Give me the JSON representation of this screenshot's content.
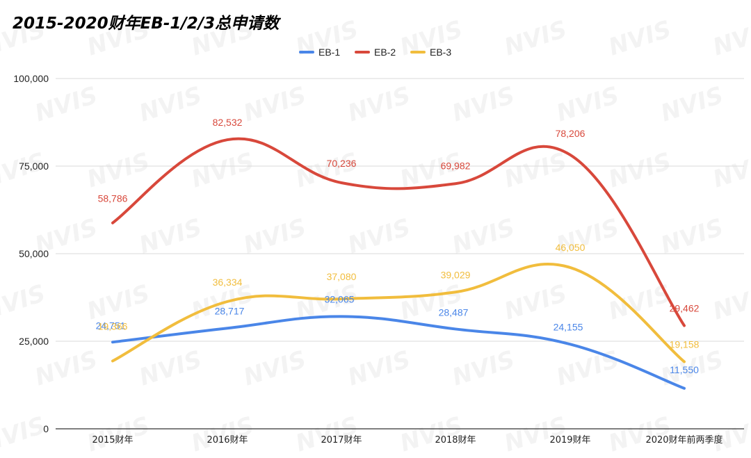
{
  "chart_data": {
    "type": "line",
    "title": "2015-2020财年EB-1/2/3总申请数",
    "categories": [
      "2015财年",
      "2016财年",
      "2017财年",
      "2018财年",
      "2019财年",
      "2020财年前两季度"
    ],
    "yticks": [
      "0",
      "25,000",
      "50,000",
      "75,000",
      "100,000"
    ],
    "ylim": [
      0,
      100000
    ],
    "grid": true,
    "legend_position": "top-center",
    "series": [
      {
        "name": "EB-1",
        "color": "#4a86e8",
        "values": [
          24751,
          28717,
          32065,
          28487,
          24155,
          11550
        ],
        "labels": [
          "24,751",
          "28,717",
          "32,065",
          "28,487",
          "24,155",
          "11,550"
        ]
      },
      {
        "name": "EB-2",
        "color": "#d8483b",
        "values": [
          58786,
          82532,
          70236,
          69982,
          78206,
          29462
        ],
        "labels": [
          "58,786",
          "82,532",
          "70,236",
          "69,982",
          "78,206",
          "29,462"
        ]
      },
      {
        "name": "EB-3",
        "color": "#f1bd3d",
        "values": [
          19366,
          36334,
          37080,
          39029,
          46050,
          19158
        ],
        "labels": [
          "19,366",
          "36,334",
          "37,080",
          "39,029",
          "46,050",
          "19,158"
        ]
      }
    ],
    "watermark": "NVIS"
  }
}
